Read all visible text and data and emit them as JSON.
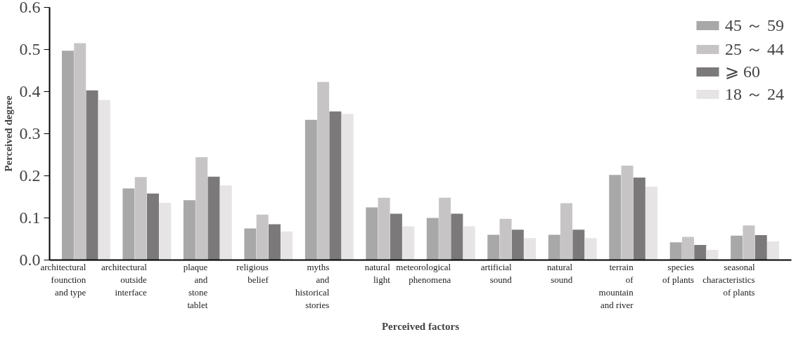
{
  "chart_data": {
    "type": "bar",
    "xlabel": "Perceived factors",
    "ylabel": "Perceived degree",
    "categories": [
      "architectural\nfounction\nand type",
      "architectural\noutside\ninterface",
      "plaque\nand\nstone\ntablet",
      "religious\nbelief",
      "myths\nand\nhistorical\nstories",
      "natural\nlight",
      "meteorological\nphenomena",
      "artificial\nsound",
      "natural\nsound",
      "terrain\nof\nmountain\nand river",
      "species\nof plants",
      "seasonal\ncharacteristics\nof plants"
    ],
    "series": [
      {
        "name": "45 ～ 59",
        "color": "#a9a8a9",
        "values": [
          0.497,
          0.17,
          0.142,
          0.075,
          0.333,
          0.125,
          0.1,
          0.06,
          0.06,
          0.202,
          0.042,
          0.058
        ]
      },
      {
        "name": "25 ～ 44",
        "color": "#c6c4c5",
        "values": [
          0.515,
          0.197,
          0.244,
          0.108,
          0.423,
          0.148,
          0.148,
          0.098,
          0.135,
          0.224,
          0.055,
          0.082
        ]
      },
      {
        "name": "⩾ 60",
        "color": "#7b797a",
        "values": [
          0.403,
          0.158,
          0.198,
          0.085,
          0.353,
          0.11,
          0.11,
          0.072,
          0.072,
          0.196,
          0.036,
          0.059
        ]
      },
      {
        "name": "18 ～ 24",
        "color": "#e6e4e5",
        "values": [
          0.38,
          0.136,
          0.177,
          0.068,
          0.347,
          0.08,
          0.08,
          0.052,
          0.052,
          0.174,
          0.024,
          0.044
        ]
      }
    ],
    "ylim": [
      0,
      0.6
    ],
    "yticks": [
      {
        "value": 0,
        "label": "0.0"
      },
      {
        "value": 0.1,
        "label": "0.1"
      },
      {
        "value": 0.2,
        "label": "0.2"
      },
      {
        "value": 0.3,
        "label": "0.3"
      },
      {
        "value": 0.4,
        "label": "0.4"
      },
      {
        "value": 0.5,
        "label": "0.5"
      },
      {
        "value": 0.6,
        "label": "0.6"
      }
    ],
    "legend": "top right",
    "grid": false
  }
}
